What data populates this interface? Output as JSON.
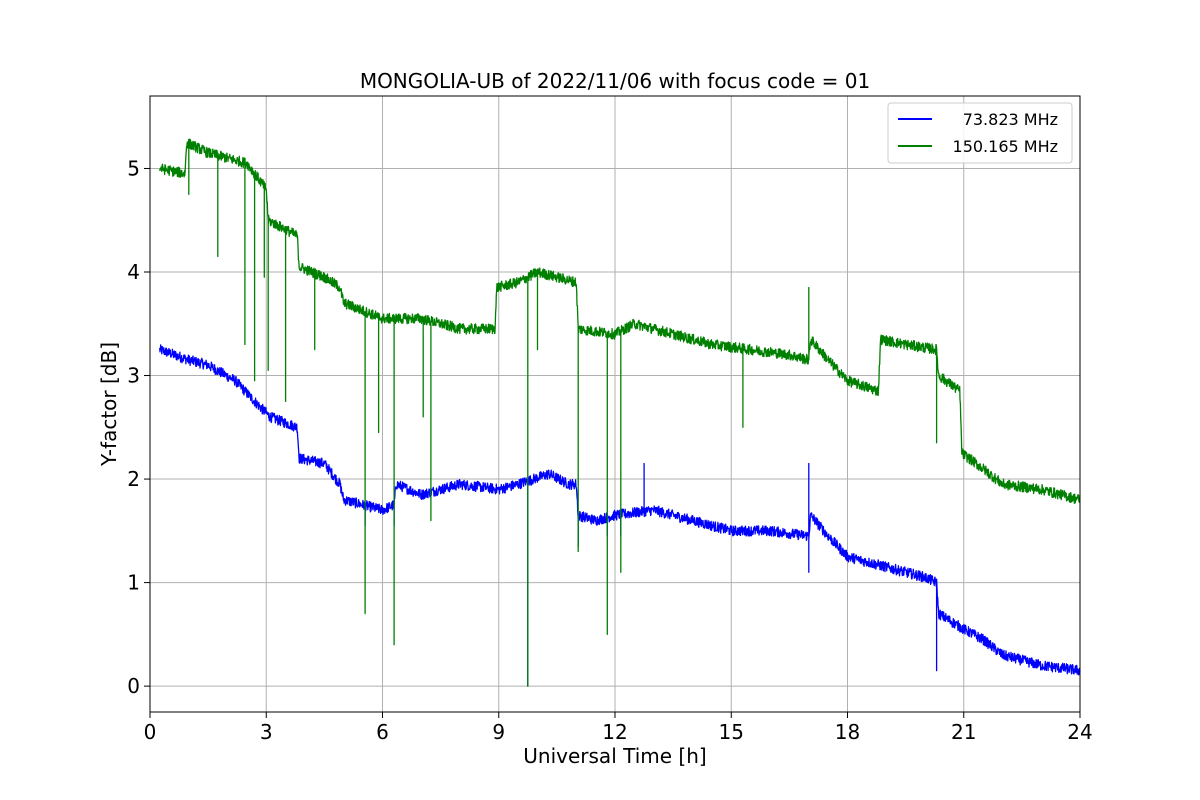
{
  "chart_data": {
    "type": "line",
    "title": "MONGOLIA-UB of 2022/11/06 with focus code = 01",
    "xlabel": "Universal Time [h]",
    "ylabel": "Y-factor [dB]",
    "xlim": [
      0,
      24
    ],
    "ylim": [
      -0.25,
      5.7
    ],
    "xticks": [
      0,
      3,
      6,
      9,
      12,
      15,
      18,
      21,
      24
    ],
    "yticks": [
      0,
      1,
      2,
      3,
      4,
      5
    ],
    "xtick_labels": [
      "0",
      "3",
      "6",
      "9",
      "12",
      "15",
      "18",
      "21",
      "24"
    ],
    "ytick_labels": [
      "0",
      "1",
      "2",
      "3",
      "4",
      "5"
    ],
    "grid": true,
    "legend_position": "top-right",
    "series": [
      {
        "name": "73.823 MHz",
        "color": "#0000ff",
        "noise": 0.05,
        "points": [
          [
            0.25,
            3.25
          ],
          [
            1.0,
            3.15
          ],
          [
            1.5,
            3.1
          ],
          [
            2.2,
            2.95
          ],
          [
            2.7,
            2.75
          ],
          [
            3.1,
            2.6
          ],
          [
            3.8,
            2.5
          ],
          [
            3.85,
            2.2
          ],
          [
            4.5,
            2.15
          ],
          [
            4.9,
            1.95
          ],
          [
            5.0,
            1.8
          ],
          [
            6.0,
            1.7
          ],
          [
            6.3,
            1.75
          ],
          [
            6.35,
            1.95
          ],
          [
            7.0,
            1.85
          ],
          [
            7.5,
            1.9
          ],
          [
            8.0,
            1.95
          ],
          [
            9.0,
            1.9
          ],
          [
            9.5,
            1.95
          ],
          [
            10.3,
            2.05
          ],
          [
            10.8,
            1.95
          ],
          [
            11.0,
            1.95
          ],
          [
            11.05,
            1.65
          ],
          [
            11.5,
            1.6
          ],
          [
            12.0,
            1.65
          ],
          [
            13.0,
            1.7
          ],
          [
            14.0,
            1.6
          ],
          [
            15.0,
            1.5
          ],
          [
            16.0,
            1.5
          ],
          [
            17.0,
            1.45
          ],
          [
            17.05,
            1.65
          ],
          [
            17.5,
            1.45
          ],
          [
            18.0,
            1.25
          ],
          [
            19.0,
            1.15
          ],
          [
            20.0,
            1.05
          ],
          [
            20.3,
            1.0
          ],
          [
            20.35,
            0.7
          ],
          [
            21.0,
            0.55
          ],
          [
            21.5,
            0.45
          ],
          [
            22.0,
            0.3
          ],
          [
            23.0,
            0.2
          ],
          [
            24.0,
            0.15
          ]
        ],
        "spikes": [
          [
            5.55,
            1.55
          ],
          [
            6.3,
            1.55
          ],
          [
            9.75,
            0.0
          ],
          [
            11.05,
            1.35
          ],
          [
            11.8,
            1.45
          ],
          [
            12.15,
            1.45
          ],
          [
            12.75,
            2.15
          ],
          [
            17.0,
            2.15
          ],
          [
            17.0,
            1.1
          ],
          [
            20.3,
            0.15
          ]
        ]
      },
      {
        "name": "150.165 MHz",
        "color": "#008000",
        "noise": 0.05,
        "points": [
          [
            0.25,
            5.0
          ],
          [
            0.9,
            4.95
          ],
          [
            0.95,
            5.25
          ],
          [
            1.5,
            5.15
          ],
          [
            2.0,
            5.1
          ],
          [
            2.5,
            5.05
          ],
          [
            3.0,
            4.8
          ],
          [
            3.05,
            4.5
          ],
          [
            3.8,
            4.35
          ],
          [
            3.85,
            4.05
          ],
          [
            4.5,
            3.95
          ],
          [
            4.9,
            3.85
          ],
          [
            5.0,
            3.7
          ],
          [
            6.0,
            3.55
          ],
          [
            7.0,
            3.55
          ],
          [
            8.0,
            3.45
          ],
          [
            8.9,
            3.45
          ],
          [
            8.95,
            3.85
          ],
          [
            9.5,
            3.9
          ],
          [
            10.0,
            4.0
          ],
          [
            10.5,
            3.95
          ],
          [
            11.0,
            3.9
          ],
          [
            11.05,
            3.45
          ],
          [
            12.0,
            3.4
          ],
          [
            12.5,
            3.5
          ],
          [
            13.5,
            3.4
          ],
          [
            14.5,
            3.3
          ],
          [
            15.5,
            3.25
          ],
          [
            16.5,
            3.2
          ],
          [
            17.0,
            3.15
          ],
          [
            17.05,
            3.35
          ],
          [
            17.5,
            3.15
          ],
          [
            18.0,
            2.95
          ],
          [
            18.8,
            2.85
          ],
          [
            18.85,
            3.35
          ],
          [
            19.5,
            3.3
          ],
          [
            20.3,
            3.25
          ],
          [
            20.35,
            3.0
          ],
          [
            20.9,
            2.85
          ],
          [
            20.95,
            2.25
          ],
          [
            21.5,
            2.1
          ],
          [
            22.0,
            1.95
          ],
          [
            23.0,
            1.9
          ],
          [
            24.0,
            1.8
          ]
        ],
        "spikes": [
          [
            1.0,
            4.75
          ],
          [
            1.75,
            4.15
          ],
          [
            2.45,
            3.3
          ],
          [
            2.7,
            2.95
          ],
          [
            2.95,
            3.95
          ],
          [
            3.05,
            3.05
          ],
          [
            3.5,
            2.75
          ],
          [
            4.25,
            3.25
          ],
          [
            5.55,
            0.7
          ],
          [
            5.9,
            2.45
          ],
          [
            6.3,
            0.4
          ],
          [
            7.05,
            2.6
          ],
          [
            7.25,
            1.6
          ],
          [
            9.75,
            0.0
          ],
          [
            10.0,
            3.25
          ],
          [
            11.05,
            1.3
          ],
          [
            11.8,
            0.5
          ],
          [
            12.15,
            1.1
          ],
          [
            15.3,
            2.5
          ],
          [
            17.0,
            3.85
          ],
          [
            20.3,
            2.35
          ]
        ]
      }
    ]
  }
}
